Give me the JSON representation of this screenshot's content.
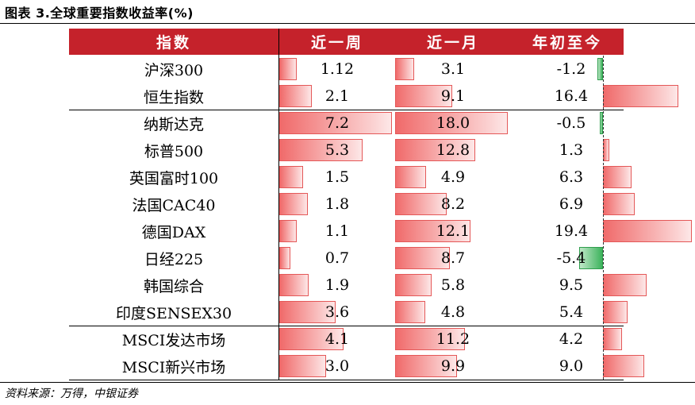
{
  "title": "图表 3.全球重要指数收益率(%)",
  "headers": {
    "index": "指数",
    "week": "近一周",
    "month": "近一月",
    "ytd": "年初至今"
  },
  "colors": {
    "header_bg": "#c5222b",
    "positive_bar": "#f06a6a",
    "negative_bar": "#3db35c"
  },
  "rows": [
    {
      "name": "沪深300",
      "week": 1.12,
      "month": 3.1,
      "ytd": -1.2,
      "week_label": "1.12",
      "month_label": "3.1",
      "ytd_label": "-1.2"
    },
    {
      "name": "恒生指数",
      "week": 2.1,
      "month": 9.1,
      "ytd": 16.4,
      "week_label": "2.1",
      "month_label": "9.1",
      "ytd_label": "16.4"
    },
    {
      "name": "纳斯达克",
      "week": 7.2,
      "month": 18.0,
      "ytd": -0.5,
      "week_label": "7.2",
      "month_label": "18.0",
      "ytd_label": "-0.5"
    },
    {
      "name": "标普500",
      "week": 5.3,
      "month": 12.8,
      "ytd": 1.3,
      "week_label": "5.3",
      "month_label": "12.8",
      "ytd_label": "1.3"
    },
    {
      "name": "英国富时100",
      "week": 1.5,
      "month": 4.9,
      "ytd": 6.3,
      "week_label": "1.5",
      "month_label": "4.9",
      "ytd_label": "6.3"
    },
    {
      "name": "法国CAC40",
      "week": 1.8,
      "month": 8.2,
      "ytd": 6.9,
      "week_label": "1.8",
      "month_label": "8.2",
      "ytd_label": "6.9"
    },
    {
      "name": "德国DAX",
      "week": 1.1,
      "month": 12.1,
      "ytd": 19.4,
      "week_label": "1.1",
      "month_label": "12.1",
      "ytd_label": "19.4"
    },
    {
      "name": "日经225",
      "week": 0.7,
      "month": 8.7,
      "ytd": -5.4,
      "week_label": "0.7",
      "month_label": "8.7",
      "ytd_label": "-5.4"
    },
    {
      "name": "韩国综合",
      "week": 1.9,
      "month": 5.8,
      "ytd": 9.5,
      "week_label": "1.9",
      "month_label": "5.8",
      "ytd_label": "9.5"
    },
    {
      "name": "印度SENSEX30",
      "week": 3.6,
      "month": 4.8,
      "ytd": 5.4,
      "week_label": "3.6",
      "month_label": "4.8",
      "ytd_label": "5.4"
    },
    {
      "name": "MSCI发达市场",
      "week": 4.1,
      "month": 11.2,
      "ytd": 4.2,
      "week_label": "4.1",
      "month_label": "11.2",
      "ytd_label": "4.2"
    },
    {
      "name": "MSCI新兴市场",
      "week": 3.0,
      "month": 9.9,
      "ytd": 9.0,
      "week_label": "3.0",
      "month_label": "9.9",
      "ytd_label": "9.0"
    }
  ],
  "source": "资料来源：万得，中银证券"
}
